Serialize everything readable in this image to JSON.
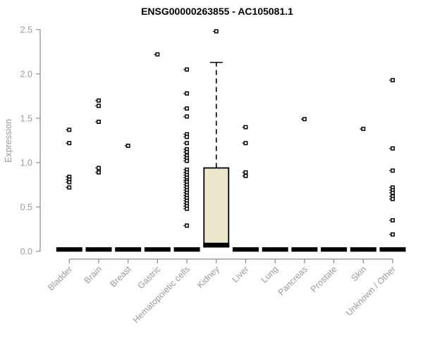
{
  "page": {
    "background": "#ffffff"
  },
  "chart_data": {
    "type": "boxplot",
    "title": "ENSG00000263855 - AC105081.1",
    "ylabel": "Expression",
    "xlabel": "",
    "ylim": [
      0.0,
      2.5
    ],
    "yticks": [
      "0.0",
      "0.5",
      "1.0",
      "1.5",
      "2.0",
      "2.5"
    ],
    "grid": false,
    "legend": "none",
    "colors": {
      "box_fill": "#ece7cb",
      "box_stroke": "#000000",
      "median": "#000000",
      "point": "#000000",
      "axis": "#898989",
      "tick_text": "#9a9a9a",
      "title_text": "#000000"
    },
    "categories": [
      "Bladder",
      "Brain",
      "Breast",
      "Gastric",
      "Hematopoietic cells",
      "Kidney",
      "Liver",
      "Lung",
      "Pancreas",
      "Prostate",
      "Skin",
      "Unknown / Other"
    ],
    "boxes": [
      {
        "category": "Bladder",
        "q1": 0,
        "median": 0,
        "q3": 0,
        "whisker_low": 0,
        "whisker_high": 0,
        "outliers": [
          1.37,
          1.22,
          0.84,
          0.81,
          0.78,
          0.72
        ]
      },
      {
        "category": "Brain",
        "q1": 0,
        "median": 0,
        "q3": 0,
        "whisker_low": 0,
        "whisker_high": 0,
        "outliers": [
          1.7,
          1.64,
          1.46,
          0.94,
          0.89
        ]
      },
      {
        "category": "Breast",
        "q1": 0,
        "median": 0,
        "q3": 0,
        "whisker_low": 0,
        "whisker_high": 0,
        "outliers": [
          1.19
        ]
      },
      {
        "category": "Gastric",
        "q1": 0,
        "median": 0,
        "q3": 0,
        "whisker_low": 0,
        "whisker_high": 0,
        "outliers": [
          2.22
        ]
      },
      {
        "category": "Hematopoietic cells",
        "q1": 0,
        "median": 0,
        "q3": 0,
        "whisker_low": 0,
        "whisker_high": 0,
        "outliers": [
          2.05,
          1.78,
          1.61,
          1.52,
          1.32,
          1.29,
          1.22,
          1.15,
          1.12,
          1.08,
          1.05,
          1.02,
          0.92,
          0.89,
          0.86,
          0.83,
          0.8,
          0.78,
          0.75,
          0.72,
          0.69,
          0.66,
          0.63,
          0.6,
          0.57,
          0.54,
          0.51,
          0.48,
          0.29
        ]
      },
      {
        "category": "Kidney",
        "q1": 0.05,
        "median": 0.08,
        "q3": 0.94,
        "whisker_low": 0.05,
        "whisker_high": 2.13,
        "outliers": [
          2.48
        ]
      },
      {
        "category": "Liver",
        "q1": 0,
        "median": 0,
        "q3": 0,
        "whisker_low": 0,
        "whisker_high": 0,
        "outliers": [
          1.4,
          1.22,
          0.89,
          0.85
        ]
      },
      {
        "category": "Lung",
        "q1": 0,
        "median": 0,
        "q3": 0,
        "whisker_low": 0,
        "whisker_high": 0,
        "outliers": []
      },
      {
        "category": "Pancreas",
        "q1": 0,
        "median": 0,
        "q3": 0,
        "whisker_low": 0,
        "whisker_high": 0,
        "outliers": [
          1.49
        ]
      },
      {
        "category": "Prostate",
        "q1": 0,
        "median": 0,
        "q3": 0,
        "whisker_low": 0,
        "whisker_high": 0,
        "outliers": []
      },
      {
        "category": "Skin",
        "q1": 0,
        "median": 0,
        "q3": 0,
        "whisker_low": 0,
        "whisker_high": 0,
        "outliers": [
          1.38
        ]
      },
      {
        "category": "Unknown / Other",
        "q1": 0,
        "median": 0,
        "q3": 0,
        "whisker_low": 0,
        "whisker_high": 0,
        "outliers": [
          1.93,
          1.16,
          0.91,
          0.72,
          0.69,
          0.66,
          0.62,
          0.59,
          0.35,
          0.19
        ]
      }
    ]
  }
}
